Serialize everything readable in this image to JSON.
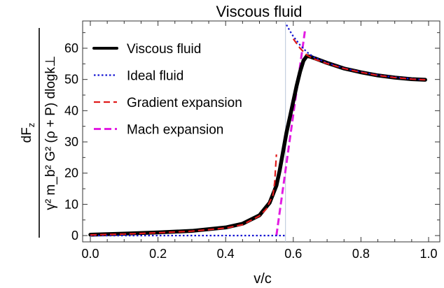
{
  "chart_data": {
    "type": "line",
    "title": "Viscous fluid",
    "xlabel": "v/c",
    "ylabel": {
      "numerator": "dF",
      "numerator_sub": "z",
      "denominator": "γ² m_b² G² (ρ + P) dlogk⊥"
    },
    "xlim": [
      0.0,
      1.0
    ],
    "ylim": [
      -1,
      68
    ],
    "x_ticks": [
      "0.0",
      "0.2",
      "0.4",
      "0.6",
      "0.8",
      "1.0"
    ],
    "y_ticks": [
      "0",
      "10",
      "20",
      "30",
      "40",
      "50",
      "60"
    ],
    "x_tick_values": [
      0.0,
      0.2,
      0.4,
      0.6,
      0.8,
      1.0
    ],
    "y_tick_values": [
      0,
      10,
      20,
      30,
      40,
      50,
      60
    ],
    "vertical_reference_line": {
      "x": 0.577,
      "color": "#b8c6d8"
    },
    "legend_position": "top-left",
    "series": [
      {
        "name": "Viscous fluid",
        "style": "solid",
        "color": "#000000",
        "x": [
          0.0,
          0.1,
          0.2,
          0.3,
          0.4,
          0.45,
          0.5,
          0.53,
          0.55,
          0.56,
          0.57,
          0.58,
          0.59,
          0.6,
          0.61,
          0.62,
          0.63,
          0.64,
          0.65,
          0.67,
          0.7,
          0.75,
          0.8,
          0.85,
          0.9,
          0.95,
          0.99
        ],
        "y": [
          0.3,
          0.6,
          1.0,
          1.5,
          2.6,
          3.8,
          6.5,
          10.5,
          16.0,
          21.0,
          27.0,
          33.0,
          38.0,
          43.0,
          48.0,
          52.5,
          56.0,
          57.5,
          57.3,
          56.5,
          55.3,
          53.5,
          52.3,
          51.3,
          50.6,
          50.1,
          49.9
        ]
      },
      {
        "name": "Ideal fluid",
        "style": "dotted",
        "color": "#1414d2",
        "x": [
          0.0,
          0.2,
          0.4,
          0.5,
          0.57,
          0.578,
          0.58,
          0.59,
          0.6,
          0.62,
          0.64,
          0.66,
          0.7,
          0.75,
          0.8,
          0.85,
          0.9,
          0.95,
          0.99
        ],
        "y": [
          0,
          0,
          0,
          0,
          0,
          0,
          67.5,
          65.5,
          63.8,
          61.0,
          58.8,
          57.2,
          55.3,
          53.6,
          52.4,
          51.4,
          50.7,
          50.2,
          49.9
        ]
      },
      {
        "name": "Gradient expansion",
        "style": "dashed",
        "color": "#e01b1b",
        "x": [
          0.0,
          0.1,
          0.2,
          0.3,
          0.4,
          0.45,
          0.5,
          0.52,
          0.54,
          0.545,
          0.55
        ],
        "y": [
          0.2,
          0.5,
          0.9,
          1.4,
          2.4,
          3.5,
          6.3,
          8.5,
          13.0,
          17.0,
          26.0
        ],
        "x2": [
          0.6,
          0.62,
          0.64,
          0.66,
          0.7,
          0.75,
          0.8,
          0.85,
          0.9,
          0.95,
          0.99
        ],
        "y2": [
          63.0,
          60.0,
          57.8,
          56.6,
          55.1,
          53.5,
          52.3,
          51.3,
          50.6,
          50.1,
          49.9
        ]
      },
      {
        "name": "Mach expansion",
        "style": "dashed",
        "color": "#e21ce2",
        "x": [
          0.55,
          0.567,
          0.584,
          0.601,
          0.618,
          0.635
        ],
        "y": [
          0,
          13.2,
          26.4,
          39.6,
          52.8,
          66.0
        ]
      }
    ]
  }
}
